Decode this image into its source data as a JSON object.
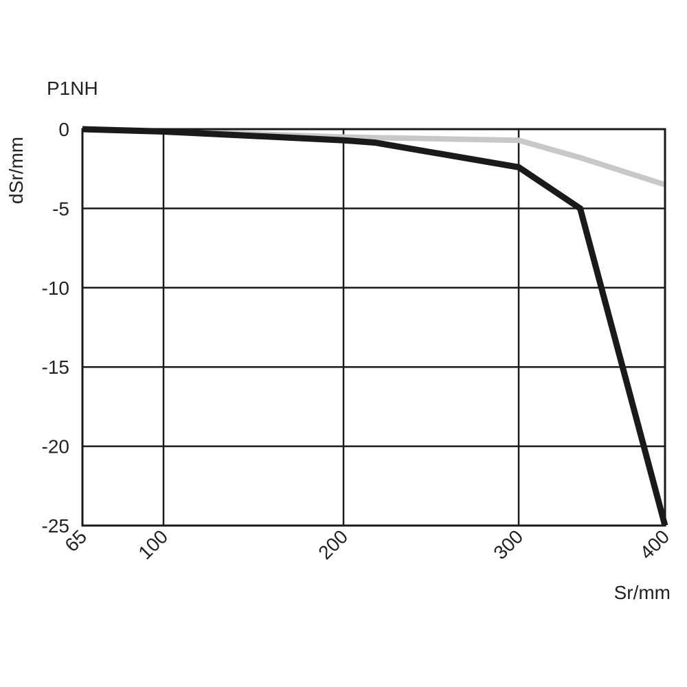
{
  "chart_data": {
    "type": "line",
    "title": "P1NH",
    "ylabel": "dSr/mm",
    "xlabel": "Sr/mm",
    "x_ticks": [
      {
        "value": 65,
        "label": "65"
      },
      {
        "value": 100,
        "label": "100"
      },
      {
        "value": 200,
        "label": "200"
      },
      {
        "value": 300,
        "label": "300"
      },
      {
        "value": 400,
        "label": "400"
      }
    ],
    "x_gridlines": [
      100,
      200,
      300
    ],
    "x_scale": "non-uniform",
    "x_label_rotation": "diagonal",
    "y_ticks": [
      {
        "value": 0,
        "label": "0"
      },
      {
        "value": -5,
        "label": "-5"
      },
      {
        "value": -10,
        "label": "-10"
      },
      {
        "value": -15,
        "label": "-15"
      },
      {
        "value": -20,
        "label": "-20"
      },
      {
        "value": -25,
        "label": "-25"
      }
    ],
    "ylim": [
      -25,
      0
    ],
    "xlim": [
      65,
      400
    ],
    "grid": true,
    "series": [
      {
        "color": "#c8c8c8",
        "points": [
          [
            65,
            0
          ],
          [
            100,
            -0.1
          ],
          [
            200,
            -0.5
          ],
          [
            300,
            -0.7
          ],
          [
            342,
            -1.8
          ],
          [
            400,
            -3.5
          ]
        ]
      },
      {
        "color": "#1a1a1a",
        "points": [
          [
            65,
            0
          ],
          [
            100,
            -0.15
          ],
          [
            200,
            -0.7
          ],
          [
            218,
            -0.85
          ],
          [
            300,
            -2.4
          ],
          [
            342,
            -5.0
          ],
          [
            400,
            -25
          ]
        ]
      }
    ]
  }
}
